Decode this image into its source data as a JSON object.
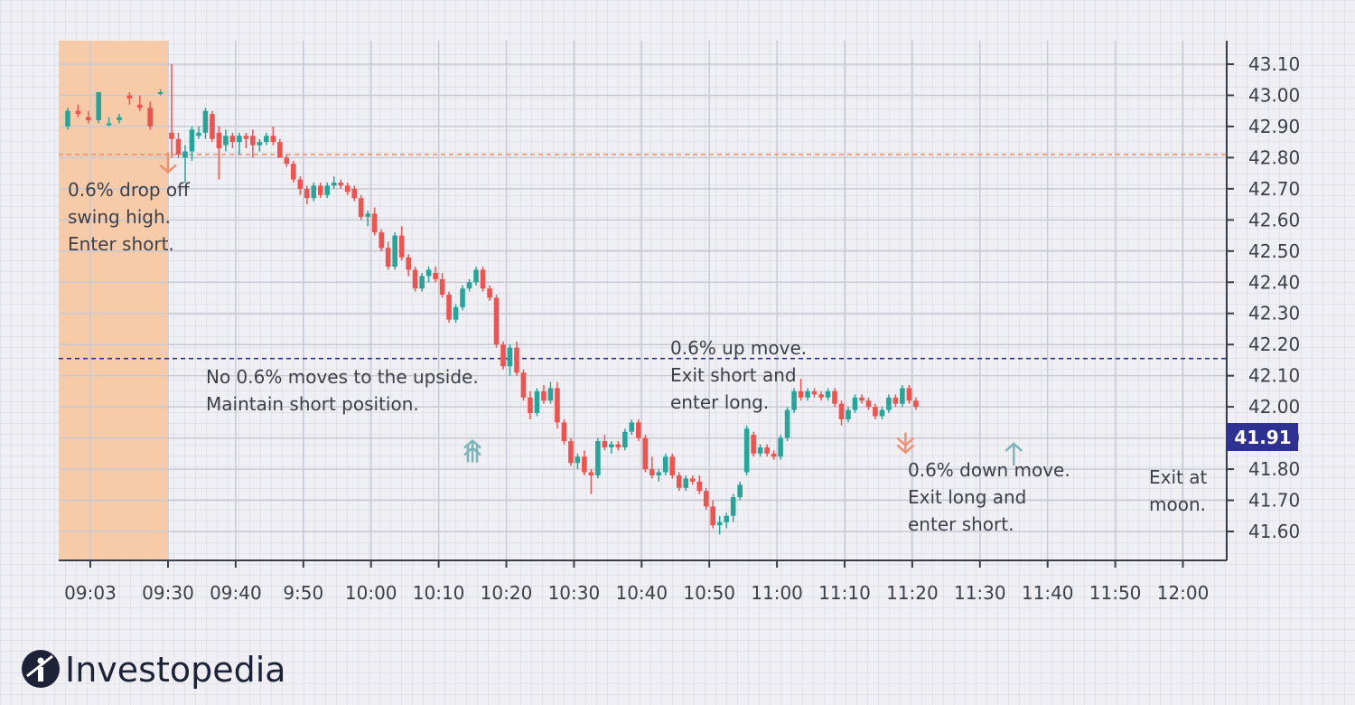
{
  "chart_data": {
    "type": "candlestick",
    "title": "",
    "xlabel": "",
    "ylabel": "",
    "ylim": [
      41.5,
      43.15
    ],
    "y_ticks": [
      "43.10",
      "43.00",
      "42.90",
      "42.80",
      "42.70",
      "42.60",
      "42.50",
      "42.40",
      "42.30",
      "42.20",
      "42.10",
      "42.00",
      "41.90",
      "41.80",
      "41.70",
      "41.60"
    ],
    "x_ticks": [
      "09:03",
      "09:30",
      "09:40",
      "9:50",
      "10:00",
      "10:10",
      "10:20",
      "10:30",
      "10:40",
      "10:50",
      "11:00",
      "11:10",
      "11:20",
      "11:30",
      "11:40",
      "11:50",
      "12:00"
    ],
    "last_price": "41.91",
    "reference_lines": [
      {
        "name": "swing-high-drop-level",
        "value": 42.81,
        "color": "#f0906e"
      },
      {
        "name": "up-move-level",
        "value": 42.155,
        "color": "#2e3192"
      }
    ],
    "premarket_zone": {
      "from": "09:03",
      "to": "09:30",
      "color": "#f7cba8"
    },
    "signals": [
      {
        "name": "enter-short-1",
        "time_index": 0,
        "price": 42.8,
        "type": "down",
        "color": "#f0906e"
      },
      {
        "name": "enter-long",
        "time_index": 45,
        "price": 41.88,
        "type": "up",
        "color": "#7bb5b9"
      },
      {
        "name": "enter-short-2",
        "time_index": 109,
        "price": 41.9,
        "type": "down",
        "color": "#f0906e"
      },
      {
        "name": "exit",
        "time_index": 125,
        "price": 41.87,
        "type": "up",
        "color": "#7bb5b9"
      }
    ],
    "premarket_candles": [
      {
        "o": 42.9,
        "h": 42.96,
        "l": 42.89,
        "c": 42.95
      },
      {
        "o": 42.95,
        "h": 42.97,
        "l": 42.93,
        "c": 42.94
      },
      {
        "o": 42.93,
        "h": 42.95,
        "l": 42.91,
        "c": 42.92
      },
      {
        "o": 42.92,
        "h": 43.01,
        "l": 42.91,
        "c": 43.01
      },
      {
        "o": 42.91,
        "h": 42.93,
        "l": 42.9,
        "c": 42.91
      },
      {
        "o": 42.92,
        "h": 42.94,
        "l": 42.91,
        "c": 42.93
      },
      {
        "o": 43.0,
        "h": 43.01,
        "l": 42.97,
        "c": 42.99
      },
      {
        "o": 42.97,
        "h": 43.0,
        "l": 42.95,
        "c": 42.96
      },
      {
        "o": 42.96,
        "h": 42.98,
        "l": 42.89,
        "c": 42.9
      },
      {
        "o": 43.01,
        "h": 43.02,
        "l": 43.0,
        "c": 43.01
      }
    ],
    "candles": [
      {
        "o": 42.88,
        "h": 43.1,
        "l": 42.8,
        "c": 42.86
      },
      {
        "o": 42.86,
        "h": 42.88,
        "l": 42.8,
        "c": 42.81
      },
      {
        "o": 42.8,
        "h": 42.84,
        "l": 42.72,
        "c": 42.82
      },
      {
        "o": 42.82,
        "h": 42.9,
        "l": 42.79,
        "c": 42.89
      },
      {
        "o": 42.87,
        "h": 42.9,
        "l": 42.86,
        "c": 42.88
      },
      {
        "o": 42.88,
        "h": 42.96,
        "l": 42.86,
        "c": 42.95
      },
      {
        "o": 42.94,
        "h": 42.95,
        "l": 42.85,
        "c": 42.86
      },
      {
        "o": 42.88,
        "h": 42.9,
        "l": 42.73,
        "c": 42.83
      },
      {
        "o": 42.84,
        "h": 42.89,
        "l": 42.82,
        "c": 42.87
      },
      {
        "o": 42.87,
        "h": 42.88,
        "l": 42.83,
        "c": 42.85
      },
      {
        "o": 42.85,
        "h": 42.88,
        "l": 42.81,
        "c": 42.87
      },
      {
        "o": 42.87,
        "h": 42.88,
        "l": 42.83,
        "c": 42.86
      },
      {
        "o": 42.87,
        "h": 42.89,
        "l": 42.8,
        "c": 42.84
      },
      {
        "o": 42.84,
        "h": 42.86,
        "l": 42.82,
        "c": 42.85
      },
      {
        "o": 42.85,
        "h": 42.88,
        "l": 42.84,
        "c": 42.87
      },
      {
        "o": 42.87,
        "h": 42.9,
        "l": 42.84,
        "c": 42.85
      },
      {
        "o": 42.85,
        "h": 42.86,
        "l": 42.8,
        "c": 42.8
      },
      {
        "o": 42.8,
        "h": 42.81,
        "l": 42.77,
        "c": 42.78
      },
      {
        "o": 42.78,
        "h": 42.79,
        "l": 42.72,
        "c": 42.73
      },
      {
        "o": 42.73,
        "h": 42.74,
        "l": 42.68,
        "c": 42.7
      },
      {
        "o": 42.7,
        "h": 42.71,
        "l": 42.65,
        "c": 42.67
      },
      {
        "o": 42.67,
        "h": 42.72,
        "l": 42.66,
        "c": 42.71
      },
      {
        "o": 42.71,
        "h": 42.72,
        "l": 42.67,
        "c": 42.68
      },
      {
        "o": 42.68,
        "h": 42.72,
        "l": 42.67,
        "c": 42.71
      },
      {
        "o": 42.71,
        "h": 42.74,
        "l": 42.7,
        "c": 42.72
      },
      {
        "o": 42.72,
        "h": 42.73,
        "l": 42.7,
        "c": 42.71
      },
      {
        "o": 42.71,
        "h": 42.72,
        "l": 42.68,
        "c": 42.69
      },
      {
        "o": 42.7,
        "h": 42.71,
        "l": 42.66,
        "c": 42.67
      },
      {
        "o": 42.67,
        "h": 42.68,
        "l": 42.6,
        "c": 42.61
      },
      {
        "o": 42.61,
        "h": 42.63,
        "l": 42.58,
        "c": 42.62
      },
      {
        "o": 42.62,
        "h": 42.64,
        "l": 42.55,
        "c": 42.56
      },
      {
        "o": 42.56,
        "h": 42.57,
        "l": 42.5,
        "c": 42.51
      },
      {
        "o": 42.51,
        "h": 42.53,
        "l": 42.44,
        "c": 42.45
      },
      {
        "o": 42.45,
        "h": 42.56,
        "l": 42.44,
        "c": 42.55
      },
      {
        "o": 42.55,
        "h": 42.58,
        "l": 42.47,
        "c": 42.48
      },
      {
        "o": 42.48,
        "h": 42.49,
        "l": 42.42,
        "c": 42.44
      },
      {
        "o": 42.44,
        "h": 42.45,
        "l": 42.37,
        "c": 42.38
      },
      {
        "o": 42.38,
        "h": 42.43,
        "l": 42.37,
        "c": 42.42
      },
      {
        "o": 42.42,
        "h": 42.45,
        "l": 42.4,
        "c": 42.44
      },
      {
        "o": 42.43,
        "h": 42.45,
        "l": 42.4,
        "c": 42.41
      },
      {
        "o": 42.41,
        "h": 42.43,
        "l": 42.35,
        "c": 42.36
      },
      {
        "o": 42.36,
        "h": 42.37,
        "l": 42.27,
        "c": 42.28
      },
      {
        "o": 42.28,
        "h": 42.33,
        "l": 42.27,
        "c": 42.32
      },
      {
        "o": 42.32,
        "h": 42.39,
        "l": 42.31,
        "c": 42.38
      },
      {
        "o": 42.38,
        "h": 42.41,
        "l": 42.37,
        "c": 42.4
      },
      {
        "o": 42.4,
        "h": 42.45,
        "l": 42.39,
        "c": 42.44
      },
      {
        "o": 42.44,
        "h": 42.45,
        "l": 42.37,
        "c": 42.38
      },
      {
        "o": 42.38,
        "h": 42.39,
        "l": 42.34,
        "c": 42.35
      },
      {
        "o": 42.35,
        "h": 42.36,
        "l": 42.19,
        "c": 42.2
      },
      {
        "o": 42.2,
        "h": 42.21,
        "l": 42.12,
        "c": 42.13
      },
      {
        "o": 42.13,
        "h": 42.2,
        "l": 42.1,
        "c": 42.19
      },
      {
        "o": 42.19,
        "h": 42.21,
        "l": 42.1,
        "c": 42.11
      },
      {
        "o": 42.11,
        "h": 42.12,
        "l": 42.02,
        "c": 42.03
      },
      {
        "o": 42.03,
        "h": 42.05,
        "l": 41.96,
        "c": 41.98
      },
      {
        "o": 41.98,
        "h": 42.06,
        "l": 41.97,
        "c": 42.05
      },
      {
        "o": 42.05,
        "h": 42.07,
        "l": 42.01,
        "c": 42.02
      },
      {
        "o": 42.02,
        "h": 42.08,
        "l": 42.01,
        "c": 42.06
      },
      {
        "o": 42.06,
        "h": 42.08,
        "l": 41.93,
        "c": 41.95
      },
      {
        "o": 41.95,
        "h": 41.96,
        "l": 41.88,
        "c": 41.89
      },
      {
        "o": 41.89,
        "h": 41.9,
        "l": 41.81,
        "c": 41.82
      },
      {
        "o": 41.82,
        "h": 41.85,
        "l": 41.8,
        "c": 41.84
      },
      {
        "o": 41.84,
        "h": 41.86,
        "l": 41.78,
        "c": 41.79
      },
      {
        "o": 41.79,
        "h": 41.8,
        "l": 41.72,
        "c": 41.78
      },
      {
        "o": 41.78,
        "h": 41.9,
        "l": 41.77,
        "c": 41.89
      },
      {
        "o": 41.89,
        "h": 41.91,
        "l": 41.86,
        "c": 41.87
      },
      {
        "o": 41.87,
        "h": 41.89,
        "l": 41.85,
        "c": 41.88
      },
      {
        "o": 41.88,
        "h": 41.89,
        "l": 41.86,
        "c": 41.87
      },
      {
        "o": 41.87,
        "h": 41.93,
        "l": 41.86,
        "c": 41.92
      },
      {
        "o": 41.92,
        "h": 41.96,
        "l": 41.91,
        "c": 41.95
      },
      {
        "o": 41.95,
        "h": 41.96,
        "l": 41.89,
        "c": 41.9
      },
      {
        "o": 41.9,
        "h": 41.91,
        "l": 41.79,
        "c": 41.8
      },
      {
        "o": 41.8,
        "h": 41.84,
        "l": 41.77,
        "c": 41.78
      },
      {
        "o": 41.78,
        "h": 41.8,
        "l": 41.76,
        "c": 41.79
      },
      {
        "o": 41.79,
        "h": 41.85,
        "l": 41.78,
        "c": 41.84
      },
      {
        "o": 41.84,
        "h": 41.85,
        "l": 41.77,
        "c": 41.78
      },
      {
        "o": 41.78,
        "h": 41.79,
        "l": 41.73,
        "c": 41.74
      },
      {
        "o": 41.74,
        "h": 41.78,
        "l": 41.73,
        "c": 41.77
      },
      {
        "o": 41.77,
        "h": 41.78,
        "l": 41.75,
        "c": 41.76
      },
      {
        "o": 41.76,
        "h": 41.78,
        "l": 41.72,
        "c": 41.73
      },
      {
        "o": 41.73,
        "h": 41.74,
        "l": 41.67,
        "c": 41.68
      },
      {
        "o": 41.68,
        "h": 41.7,
        "l": 41.61,
        "c": 41.62
      },
      {
        "o": 41.62,
        "h": 41.65,
        "l": 41.59,
        "c": 41.63
      },
      {
        "o": 41.63,
        "h": 41.66,
        "l": 41.61,
        "c": 41.65
      },
      {
        "o": 41.65,
        "h": 41.72,
        "l": 41.63,
        "c": 41.71
      },
      {
        "o": 41.71,
        "h": 41.76,
        "l": 41.7,
        "c": 41.75
      },
      {
        "o": 41.79,
        "h": 41.94,
        "l": 41.78,
        "c": 41.93
      },
      {
        "o": 41.91,
        "h": 41.92,
        "l": 41.84,
        "c": 41.85
      },
      {
        "o": 41.85,
        "h": 41.88,
        "l": 41.84,
        "c": 41.87
      },
      {
        "o": 41.87,
        "h": 41.88,
        "l": 41.84,
        "c": 41.85
      },
      {
        "o": 41.85,
        "h": 41.86,
        "l": 41.83,
        "c": 41.84
      },
      {
        "o": 41.84,
        "h": 41.91,
        "l": 41.83,
        "c": 41.9
      },
      {
        "o": 41.9,
        "h": 42.0,
        "l": 41.89,
        "c": 41.99
      },
      {
        "o": 41.99,
        "h": 42.06,
        "l": 41.98,
        "c": 42.05
      },
      {
        "o": 42.05,
        "h": 42.09,
        "l": 42.02,
        "c": 42.03
      },
      {
        "o": 42.03,
        "h": 42.06,
        "l": 42.02,
        "c": 42.05
      },
      {
        "o": 42.05,
        "h": 42.06,
        "l": 42.03,
        "c": 42.04
      },
      {
        "o": 42.04,
        "h": 42.05,
        "l": 42.02,
        "c": 42.03
      },
      {
        "o": 42.03,
        "h": 42.06,
        "l": 42.02,
        "c": 42.05
      },
      {
        "o": 42.05,
        "h": 42.06,
        "l": 42.0,
        "c": 42.01
      },
      {
        "o": 42.01,
        "h": 42.02,
        "l": 41.94,
        "c": 41.96
      },
      {
        "o": 41.96,
        "h": 42.0,
        "l": 41.95,
        "c": 41.99
      },
      {
        "o": 41.99,
        "h": 42.04,
        "l": 41.98,
        "c": 42.03
      },
      {
        "o": 42.03,
        "h": 42.04,
        "l": 42.01,
        "c": 42.02
      },
      {
        "o": 42.02,
        "h": 42.03,
        "l": 41.99,
        "c": 42.0
      },
      {
        "o": 42.0,
        "h": 42.01,
        "l": 41.96,
        "c": 41.97
      },
      {
        "o": 41.97,
        "h": 42.0,
        "l": 41.96,
        "c": 41.99
      },
      {
        "o": 41.99,
        "h": 42.04,
        "l": 41.98,
        "c": 42.03
      },
      {
        "o": 42.03,
        "h": 42.04,
        "l": 42.0,
        "c": 42.01
      },
      {
        "o": 42.01,
        "h": 42.07,
        "l": 42.0,
        "c": 42.06
      },
      {
        "o": 42.06,
        "h": 42.07,
        "l": 42.01,
        "c": 42.02
      },
      {
        "o": 42.02,
        "h": 42.03,
        "l": 41.99,
        "c": 42.0
      }
    ],
    "annotations": [
      {
        "name": "enter-short-note",
        "lines": [
          "0.6% drop off",
          "swing high.",
          "Enter short."
        ]
      },
      {
        "name": "no-upside-note",
        "lines": [
          "No 0.6% moves to the upside.",
          "Maintain short position."
        ]
      },
      {
        "name": "up-move-note",
        "lines": [
          "0.6% up move.",
          "Exit short and",
          "enter long."
        ]
      },
      {
        "name": "down-move-note",
        "lines": [
          "0.6% down move.",
          "Exit long and",
          "enter short."
        ]
      },
      {
        "name": "exit-note",
        "lines": [
          "Exit at",
          "moon."
        ]
      }
    ],
    "colors": {
      "up": "#26a69a",
      "down": "#ef5350",
      "axis": "#3c3f47",
      "grid": "#c9c9d4",
      "price_tag": "#2e3192"
    }
  },
  "brand": {
    "name": "Investopedia",
    "logo_color": "#1e2236"
  }
}
